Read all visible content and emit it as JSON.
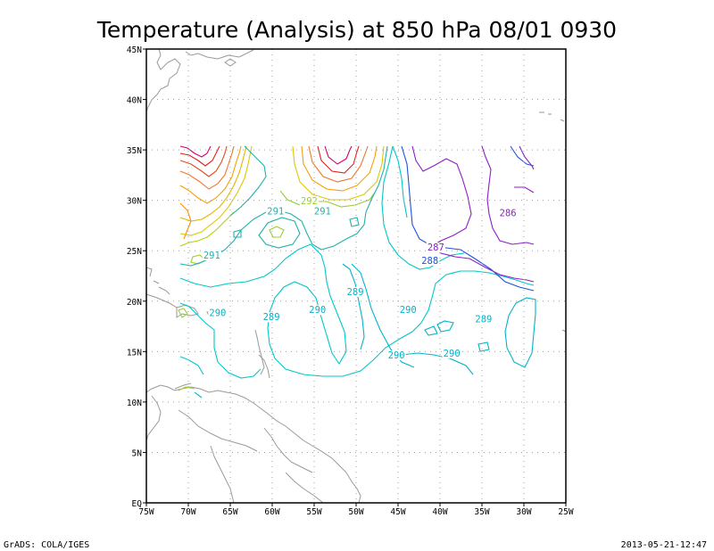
{
  "chart_data": {
    "type": "contour",
    "title": "Temperature (Analysis) at 850 hPa 08/01 0930",
    "x_ticks": [
      "75W",
      "70W",
      "65W",
      "60W",
      "55W",
      "50W",
      "45W",
      "40W",
      "35W",
      "30W",
      "25W"
    ],
    "y_ticks": [
      "EQ",
      "5N",
      "10N",
      "15N",
      "20N",
      "25N",
      "30N",
      "35N",
      "40N",
      "45N"
    ],
    "xlim": [
      -75,
      -25
    ],
    "ylim": [
      0,
      45
    ],
    "grid": true,
    "contour_labels": [
      {
        "text": "292",
        "lon": -55.6,
        "lat": 29.7,
        "color": "#9acd32"
      },
      {
        "text": "291",
        "lon": -59.6,
        "lat": 28.7,
        "color": "#20b2aa"
      },
      {
        "text": "291",
        "lon": -54.0,
        "lat": 28.7,
        "color": "#20b2aa"
      },
      {
        "text": "291",
        "lon": -67.2,
        "lat": 24.3,
        "color": "#20b2aa"
      },
      {
        "text": "290",
        "lon": -66.5,
        "lat": 18.6,
        "color": "#00b4c8"
      },
      {
        "text": "289",
        "lon": -60.1,
        "lat": 18.2,
        "color": "#00b4c8"
      },
      {
        "text": "290",
        "lon": -54.6,
        "lat": 18.9,
        "color": "#00b4c8"
      },
      {
        "text": "289",
        "lon": -50.1,
        "lat": 20.7,
        "color": "#00b4c8"
      },
      {
        "text": "290",
        "lon": -43.8,
        "lat": 18.9,
        "color": "#00b4c8"
      },
      {
        "text": "290",
        "lon": -45.2,
        "lat": 14.4,
        "color": "#00b4c8"
      },
      {
        "text": "290",
        "lon": -38.6,
        "lat": 14.6,
        "color": "#00b4c8"
      },
      {
        "text": "289",
        "lon": -34.8,
        "lat": 18.0,
        "color": "#00b4c8"
      },
      {
        "text": "288",
        "lon": -41.2,
        "lat": 23.8,
        "color": "#1e50dc"
      },
      {
        "text": "287",
        "lon": -40.5,
        "lat": 25.1,
        "color": "#8c1ec8"
      },
      {
        "text": "286",
        "lon": -31.9,
        "lat": 28.5,
        "color": "#8c1ec8"
      }
    ]
  },
  "footer": {
    "left": "GrADS: COLA/IGES",
    "right": "2013-05-21-12:47"
  }
}
